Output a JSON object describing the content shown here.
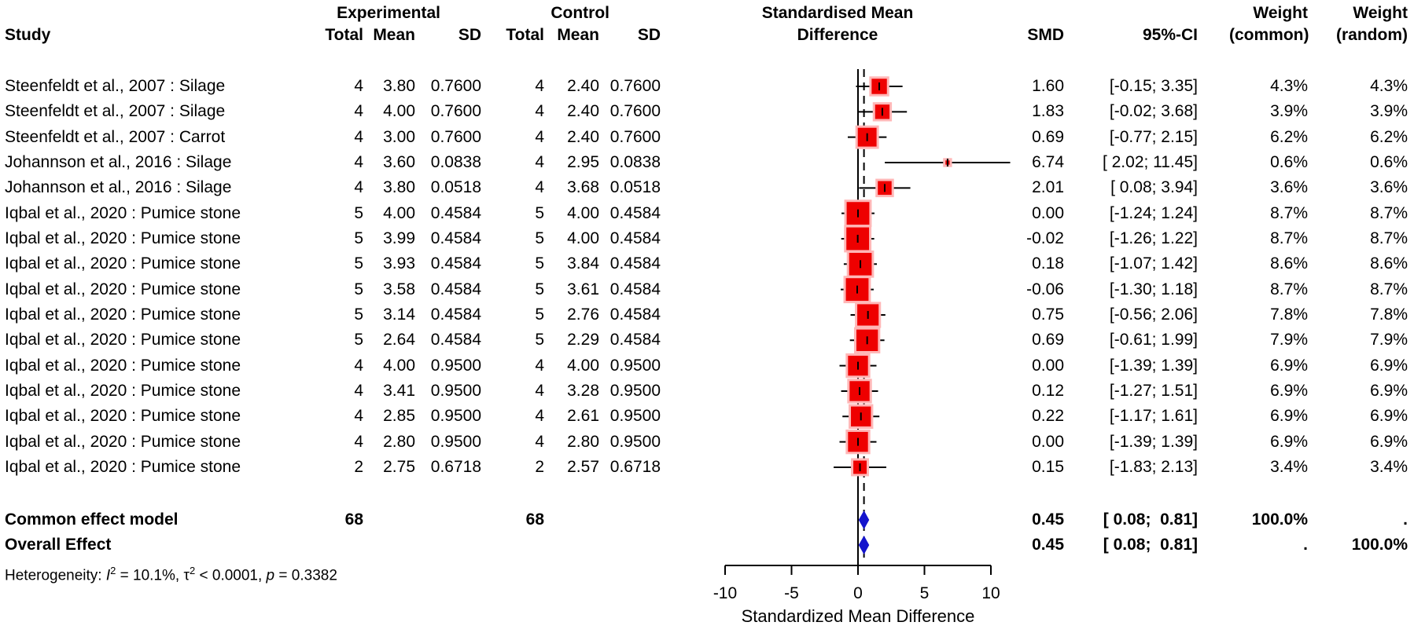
{
  "header": {
    "study": "Study",
    "experimental": "Experimental",
    "control": "Control",
    "total": "Total",
    "mean": "Mean",
    "sd": "SD",
    "effect_col_line1": "Standardised Mean",
    "effect_col_line2": "Difference",
    "smd": "SMD",
    "ci": "95%-CI",
    "weight": "Weight",
    "weight_common_sub": "(common)",
    "weight_random_sub": "(random)"
  },
  "chart_data": {
    "type": "forest",
    "x_axis": {
      "label": "Standardized Mean Difference",
      "ticks": [
        -10,
        -5,
        0,
        5,
        10
      ],
      "range": [
        -10,
        10
      ]
    },
    "zero_line": 0,
    "dashed_line_at": 0.45,
    "colors": {
      "square_fill": "#ee0000",
      "square_border": "#ffb7b7",
      "diamond_fill": "#1414cc",
      "line": "#000000"
    },
    "studies": [
      {
        "name": "Steenfeldt et al., 2007 : Silage",
        "exp": {
          "total": "4",
          "mean": "3.80",
          "sd": "0.7600"
        },
        "ctrl": {
          "total": "4",
          "mean": "2.40",
          "sd": "0.7600"
        },
        "smd": 1.6,
        "lo": -0.15,
        "hi": 3.35,
        "smd_label": "1.60",
        "ci_label": "[-0.15; 3.35]",
        "weight": 4.3,
        "w_common": "4.3%",
        "w_random": "4.3%"
      },
      {
        "name": "Steenfeldt et al., 2007 : Silage",
        "exp": {
          "total": "4",
          "mean": "4.00",
          "sd": "0.7600"
        },
        "ctrl": {
          "total": "4",
          "mean": "2.40",
          "sd": "0.7600"
        },
        "smd": 1.83,
        "lo": -0.02,
        "hi": 3.68,
        "smd_label": "1.83",
        "ci_label": "[-0.02; 3.68]",
        "weight": 3.9,
        "w_common": "3.9%",
        "w_random": "3.9%"
      },
      {
        "name": "Steenfeldt et al., 2007 : Carrot",
        "exp": {
          "total": "4",
          "mean": "3.00",
          "sd": "0.7600"
        },
        "ctrl": {
          "total": "4",
          "mean": "2.40",
          "sd": "0.7600"
        },
        "smd": 0.69,
        "lo": -0.77,
        "hi": 2.15,
        "smd_label": "0.69",
        "ci_label": "[-0.77; 2.15]",
        "weight": 6.2,
        "w_common": "6.2%",
        "w_random": "6.2%"
      },
      {
        "name": "Johannson et al., 2016 : Silage",
        "exp": {
          "total": "4",
          "mean": "3.60",
          "sd": "0.0838"
        },
        "ctrl": {
          "total": "4",
          "mean": "2.95",
          "sd": "0.0838"
        },
        "smd": 6.74,
        "lo": 2.02,
        "hi": 11.45,
        "smd_label": "6.74",
        "ci_label": "[ 2.02; 11.45]",
        "weight": 0.6,
        "w_common": "0.6%",
        "w_random": "0.6%"
      },
      {
        "name": "Johannson et al., 2016 : Silage",
        "exp": {
          "total": "4",
          "mean": "3.80",
          "sd": "0.0518"
        },
        "ctrl": {
          "total": "4",
          "mean": "3.68",
          "sd": "0.0518"
        },
        "smd": 2.01,
        "lo": 0.08,
        "hi": 3.94,
        "smd_label": "2.01",
        "ci_label": "[ 0.08; 3.94]",
        "weight": 3.6,
        "w_common": "3.6%",
        "w_random": "3.6%"
      },
      {
        "name": "Iqbal et al., 2020 : Pumice stone",
        "exp": {
          "total": "5",
          "mean": "4.00",
          "sd": "0.4584"
        },
        "ctrl": {
          "total": "5",
          "mean": "4.00",
          "sd": "0.4584"
        },
        "smd": 0.0,
        "lo": -1.24,
        "hi": 1.24,
        "smd_label": "0.00",
        "ci_label": "[-1.24; 1.24]",
        "weight": 8.7,
        "w_common": "8.7%",
        "w_random": "8.7%"
      },
      {
        "name": "Iqbal et al., 2020 : Pumice stone",
        "exp": {
          "total": "5",
          "mean": "3.99",
          "sd": "0.4584"
        },
        "ctrl": {
          "total": "5",
          "mean": "4.00",
          "sd": "0.4584"
        },
        "smd": -0.02,
        "lo": -1.26,
        "hi": 1.22,
        "smd_label": "-0.02",
        "ci_label": "[-1.26; 1.22]",
        "weight": 8.7,
        "w_common": "8.7%",
        "w_random": "8.7%"
      },
      {
        "name": "Iqbal et al., 2020 : Pumice stone",
        "exp": {
          "total": "5",
          "mean": "3.93",
          "sd": "0.4584"
        },
        "ctrl": {
          "total": "5",
          "mean": "3.84",
          "sd": "0.4584"
        },
        "smd": 0.18,
        "lo": -1.07,
        "hi": 1.42,
        "smd_label": "0.18",
        "ci_label": "[-1.07; 1.42]",
        "weight": 8.6,
        "w_common": "8.6%",
        "w_random": "8.6%"
      },
      {
        "name": "Iqbal et al., 2020 : Pumice stone",
        "exp": {
          "total": "5",
          "mean": "3.58",
          "sd": "0.4584"
        },
        "ctrl": {
          "total": "5",
          "mean": "3.61",
          "sd": "0.4584"
        },
        "smd": -0.06,
        "lo": -1.3,
        "hi": 1.18,
        "smd_label": "-0.06",
        "ci_label": "[-1.30; 1.18]",
        "weight": 8.7,
        "w_common": "8.7%",
        "w_random": "8.7%"
      },
      {
        "name": "Iqbal et al., 2020 : Pumice stone",
        "exp": {
          "total": "5",
          "mean": "3.14",
          "sd": "0.4584"
        },
        "ctrl": {
          "total": "5",
          "mean": "2.76",
          "sd": "0.4584"
        },
        "smd": 0.75,
        "lo": -0.56,
        "hi": 2.06,
        "smd_label": "0.75",
        "ci_label": "[-0.56; 2.06]",
        "weight": 7.8,
        "w_common": "7.8%",
        "w_random": "7.8%"
      },
      {
        "name": "Iqbal et al., 2020 : Pumice stone",
        "exp": {
          "total": "5",
          "mean": "2.64",
          "sd": "0.4584"
        },
        "ctrl": {
          "total": "5",
          "mean": "2.29",
          "sd": "0.4584"
        },
        "smd": 0.69,
        "lo": -0.61,
        "hi": 1.99,
        "smd_label": "0.69",
        "ci_label": "[-0.61; 1.99]",
        "weight": 7.9,
        "w_common": "7.9%",
        "w_random": "7.9%"
      },
      {
        "name": "Iqbal et al., 2020 : Pumice stone",
        "exp": {
          "total": "4",
          "mean": "4.00",
          "sd": "0.9500"
        },
        "ctrl": {
          "total": "4",
          "mean": "4.00",
          "sd": "0.9500"
        },
        "smd": 0.0,
        "lo": -1.39,
        "hi": 1.39,
        "smd_label": "0.00",
        "ci_label": "[-1.39; 1.39]",
        "weight": 6.9,
        "w_common": "6.9%",
        "w_random": "6.9%"
      },
      {
        "name": "Iqbal et al., 2020 : Pumice stone",
        "exp": {
          "total": "4",
          "mean": "3.41",
          "sd": "0.9500"
        },
        "ctrl": {
          "total": "4",
          "mean": "3.28",
          "sd": "0.9500"
        },
        "smd": 0.12,
        "lo": -1.27,
        "hi": 1.51,
        "smd_label": "0.12",
        "ci_label": "[-1.27; 1.51]",
        "weight": 6.9,
        "w_common": "6.9%",
        "w_random": "6.9%"
      },
      {
        "name": "Iqbal et al., 2020 : Pumice stone",
        "exp": {
          "total": "4",
          "mean": "2.85",
          "sd": "0.9500"
        },
        "ctrl": {
          "total": "4",
          "mean": "2.61",
          "sd": "0.9500"
        },
        "smd": 0.22,
        "lo": -1.17,
        "hi": 1.61,
        "smd_label": "0.22",
        "ci_label": "[-1.17; 1.61]",
        "weight": 6.9,
        "w_common": "6.9%",
        "w_random": "6.9%"
      },
      {
        "name": "Iqbal et al., 2020 : Pumice stone",
        "exp": {
          "total": "4",
          "mean": "2.80",
          "sd": "0.9500"
        },
        "ctrl": {
          "total": "4",
          "mean": "2.80",
          "sd": "0.9500"
        },
        "smd": 0.0,
        "lo": -1.39,
        "hi": 1.39,
        "smd_label": "0.00",
        "ci_label": "[-1.39; 1.39]",
        "weight": 6.9,
        "w_common": "6.9%",
        "w_random": "6.9%"
      },
      {
        "name": "Iqbal et al., 2020 : Pumice stone",
        "exp": {
          "total": "2",
          "mean": "2.75",
          "sd": "0.6718"
        },
        "ctrl": {
          "total": "2",
          "mean": "2.57",
          "sd": "0.6718"
        },
        "smd": 0.15,
        "lo": -1.83,
        "hi": 2.13,
        "smd_label": "0.15",
        "ci_label": "[-1.83; 2.13]",
        "weight": 3.4,
        "w_common": "3.4%",
        "w_random": "3.4%"
      }
    ],
    "summary_rows": [
      {
        "label": "Common effect model",
        "total_exp": "68",
        "total_ctrl": "68",
        "smd": 0.45,
        "lo": 0.08,
        "hi": 0.81,
        "smd_label": "0.45",
        "ci_label": "[ 0.08;  0.81]",
        "w_common": "100.0%",
        "w_random": "."
      },
      {
        "label": "Overall Effect",
        "total_exp": "",
        "total_ctrl": "",
        "smd": 0.45,
        "lo": 0.08,
        "hi": 0.81,
        "smd_label": "0.45",
        "ci_label": "[ 0.08;  0.81]",
        "w_common": ".",
        "w_random": "100.0%"
      }
    ],
    "heterogeneity": {
      "prefix": "Heterogeneity: ",
      "i_sym": "I",
      "i_sup": "2",
      "i_val": " = 10.1%, ",
      "tau_sym": "τ",
      "tau_sup": "2",
      "tau_val": " < 0.0001, ",
      "p_sym": "p",
      "p_val": " = 0.3382"
    }
  }
}
